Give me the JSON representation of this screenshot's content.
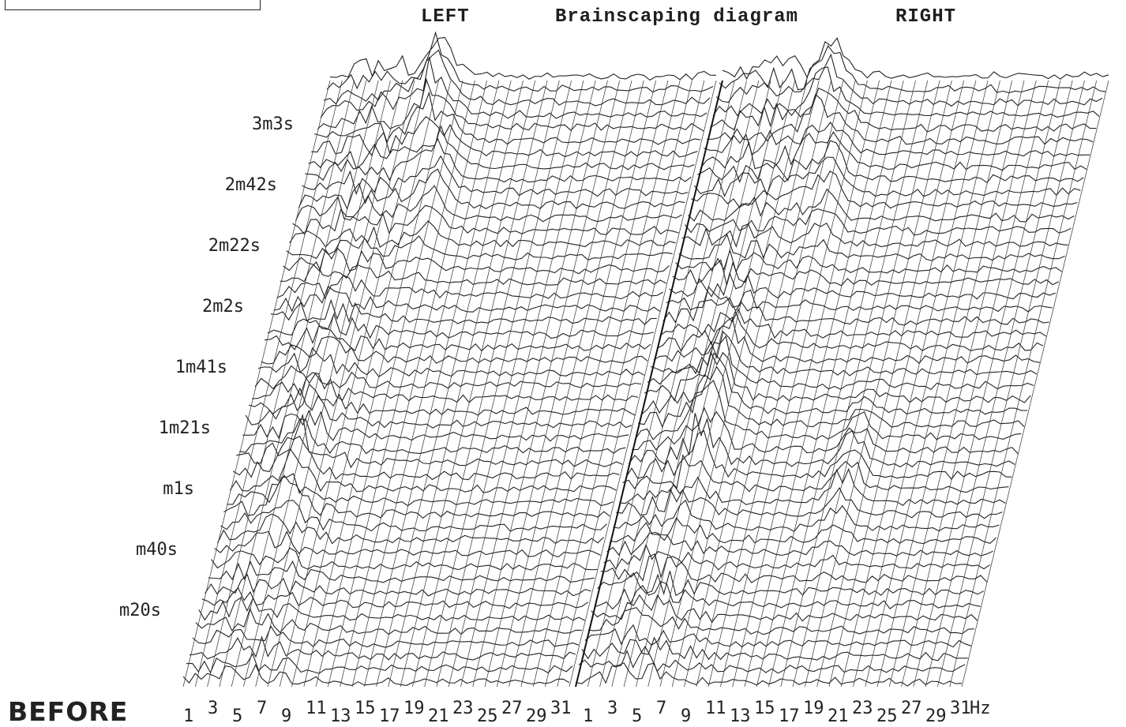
{
  "chart_data": {
    "type": "waterfall-3d",
    "title": "Brainscaping diagram",
    "panels": [
      {
        "name": "LEFT",
        "peaks": [
          {
            "freq": 10,
            "time": "3m3s",
            "amp": 0.9
          },
          {
            "freq": 12,
            "time": "2m42s",
            "amp": 0.6
          },
          {
            "freq": 6,
            "time": "1m21s",
            "amp": 0.5
          }
        ]
      },
      {
        "name": "RIGHT",
        "peaks": [
          {
            "freq": 10,
            "time": "3m3s",
            "amp": 0.8
          },
          {
            "freq": 12,
            "time": "2m42s",
            "amp": 0.6
          },
          {
            "freq": 7,
            "time": "1m41s",
            "amp": 0.9
          },
          {
            "freq": 19,
            "time": "1m21s",
            "amp": 0.6
          }
        ]
      }
    ],
    "time_labels": [
      "3m3s",
      "2m42s",
      "2m22s",
      "2m2s",
      "1m41s",
      "1m21s",
      "m1s",
      "m40s",
      "m20s"
    ],
    "freq_labels": [
      "1",
      "3",
      "5",
      "7",
      "9",
      "11",
      "13",
      "15",
      "17",
      "19",
      "21",
      "23",
      "25",
      "27",
      "29",
      "31"
    ],
    "freq_unit": "Hz",
    "tag": "BEFORE"
  }
}
